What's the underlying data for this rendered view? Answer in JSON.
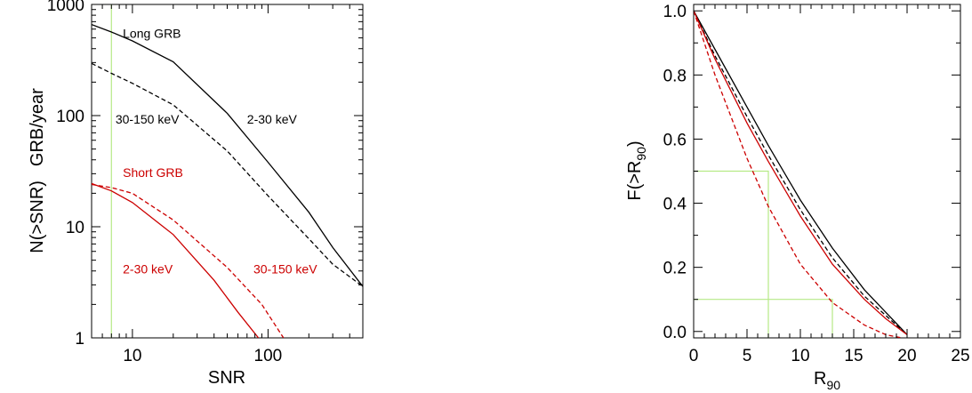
{
  "chart_data": [
    {
      "type": "line",
      "xscale": "log",
      "yscale": "log",
      "xlim": [
        5,
        500
      ],
      "ylim": [
        1,
        1000
      ],
      "xlabel": "SNR",
      "ylabel_parts": [
        "N(>SNR)",
        "GRB/year"
      ],
      "x_ticks": [
        {
          "value": 10,
          "label": "10"
        },
        {
          "value": 100,
          "label": "100"
        }
      ],
      "y_ticks": [
        {
          "value": 1,
          "label": "1"
        },
        {
          "value": 10,
          "label": "10"
        },
        {
          "value": 100,
          "label": "100"
        },
        {
          "value": 1000,
          "label": "1000"
        }
      ],
      "vertical_line": {
        "x": 7,
        "color": "#b6ea86"
      },
      "series": [
        {
          "color": "#000000",
          "dash": "solid",
          "points": [
            [
              5,
              660
            ],
            [
              7,
              565
            ],
            [
              10,
              470
            ],
            [
              20,
              305
            ],
            [
              50,
              105
            ],
            [
              100,
              38
            ],
            [
              200,
              13.5
            ],
            [
              300,
              6.5
            ],
            [
              500,
              2.9
            ]
          ]
        },
        {
          "color": "#000000",
          "dash": "dashed",
          "points": [
            [
              5,
              295
            ],
            [
              7,
              240
            ],
            [
              10,
              195
            ],
            [
              20,
              125
            ],
            [
              50,
              48
            ],
            [
              100,
              19
            ],
            [
              200,
              7.8
            ],
            [
              300,
              4.6
            ],
            [
              500,
              2.9
            ]
          ]
        },
        {
          "color": "#cc0000",
          "dash": "solid",
          "points": [
            [
              5,
              24.5
            ],
            [
              7,
              21
            ],
            [
              10,
              16.5
            ],
            [
              20,
              8.5
            ],
            [
              40,
              3.3
            ],
            [
              60,
              1.7
            ],
            [
              85,
              1.0
            ]
          ]
        },
        {
          "color": "#cc0000",
          "dash": "dashed",
          "points": [
            [
              5,
              24
            ],
            [
              7,
              22.5
            ],
            [
              10,
              20
            ],
            [
              20,
              11.5
            ],
            [
              50,
              4.3
            ],
            [
              90,
              2.0
            ],
            [
              130,
              1.0
            ]
          ]
        }
      ],
      "annotations": [
        {
          "text": "Long GRB",
          "color": "#000000",
          "x": 8.5,
          "y": 500
        },
        {
          "text": "30-150 keV",
          "color": "#000000",
          "x": 7.5,
          "y": 85
        },
        {
          "text": "2-30 keV",
          "color": "#000000",
          "x": 70,
          "y": 85
        },
        {
          "text": "Short GRB",
          "color": "#cc0000",
          "x": 8.5,
          "y": 28
        },
        {
          "text": "2-30 keV",
          "color": "#cc0000",
          "x": 8.5,
          "y": 3.8
        },
        {
          "text": "30-150 keV",
          "color": "#cc0000",
          "x": 78,
          "y": 3.8
        }
      ]
    },
    {
      "type": "line",
      "xscale": "linear",
      "yscale": "linear",
      "xlim": [
        0,
        25
      ],
      "ylim": [
        -0.02,
        1.02
      ],
      "xlabel_main": "R",
      "xlabel_sub": "90",
      "ylabel_main": "F(>R",
      "ylabel_sub": "90",
      "ylabel_close": ")",
      "x_ticks": [
        {
          "value": 0,
          "label": "0"
        },
        {
          "value": 5,
          "label": "5"
        },
        {
          "value": 10,
          "label": "10"
        },
        {
          "value": 15,
          "label": "15"
        },
        {
          "value": 20,
          "label": "20"
        },
        {
          "value": 25,
          "label": "25"
        }
      ],
      "y_ticks": [
        {
          "value": 0.0,
          "label": "0.0"
        },
        {
          "value": 0.2,
          "label": "0.2"
        },
        {
          "value": 0.4,
          "label": "0.4"
        },
        {
          "value": 0.6,
          "label": "0.6"
        },
        {
          "value": 0.8,
          "label": "0.8"
        },
        {
          "value": 1.0,
          "label": "1.0"
        }
      ],
      "guides": [
        {
          "color": "#b6ea86",
          "points": [
            [
              0,
              0.5
            ],
            [
              7,
              0.5
            ],
            [
              7,
              -0.02
            ]
          ]
        },
        {
          "color": "#b6ea86",
          "points": [
            [
              0,
              0.1
            ],
            [
              13,
              0.1
            ],
            [
              13,
              -0.02
            ]
          ]
        }
      ],
      "series": [
        {
          "color": "#000000",
          "dash": "solid",
          "points": [
            [
              0,
              1.0
            ],
            [
              2,
              0.88
            ],
            [
              5,
              0.7
            ],
            [
              7,
              0.58
            ],
            [
              10,
              0.41
            ],
            [
              13,
              0.26
            ],
            [
              16,
              0.13
            ],
            [
              18,
              0.06
            ],
            [
              20,
              -0.01
            ]
          ]
        },
        {
          "color": "#000000",
          "dash": "dashed",
          "points": [
            [
              0,
              1.0
            ],
            [
              2,
              0.86
            ],
            [
              5,
              0.67
            ],
            [
              7,
              0.55
            ],
            [
              10,
              0.38
            ],
            [
              13,
              0.23
            ],
            [
              16,
              0.11
            ],
            [
              18,
              0.05
            ],
            [
              20,
              -0.01
            ]
          ]
        },
        {
          "color": "#cc0000",
          "dash": "solid",
          "points": [
            [
              0,
              1.0
            ],
            [
              2,
              0.85
            ],
            [
              5,
              0.65
            ],
            [
              7,
              0.53
            ],
            [
              10,
              0.36
            ],
            [
              13,
              0.21
            ],
            [
              16,
              0.1
            ],
            [
              18,
              0.04
            ],
            [
              20,
              -0.01
            ]
          ]
        },
        {
          "color": "#cc0000",
          "dash": "dashed",
          "points": [
            [
              0,
              1.0
            ],
            [
              2,
              0.8
            ],
            [
              5,
              0.54
            ],
            [
              7,
              0.39
            ],
            [
              10,
              0.21
            ],
            [
              13,
              0.09
            ],
            [
              16,
              0.02
            ],
            [
              18,
              -0.01
            ],
            [
              19.5,
              -0.02
            ]
          ]
        }
      ]
    }
  ]
}
